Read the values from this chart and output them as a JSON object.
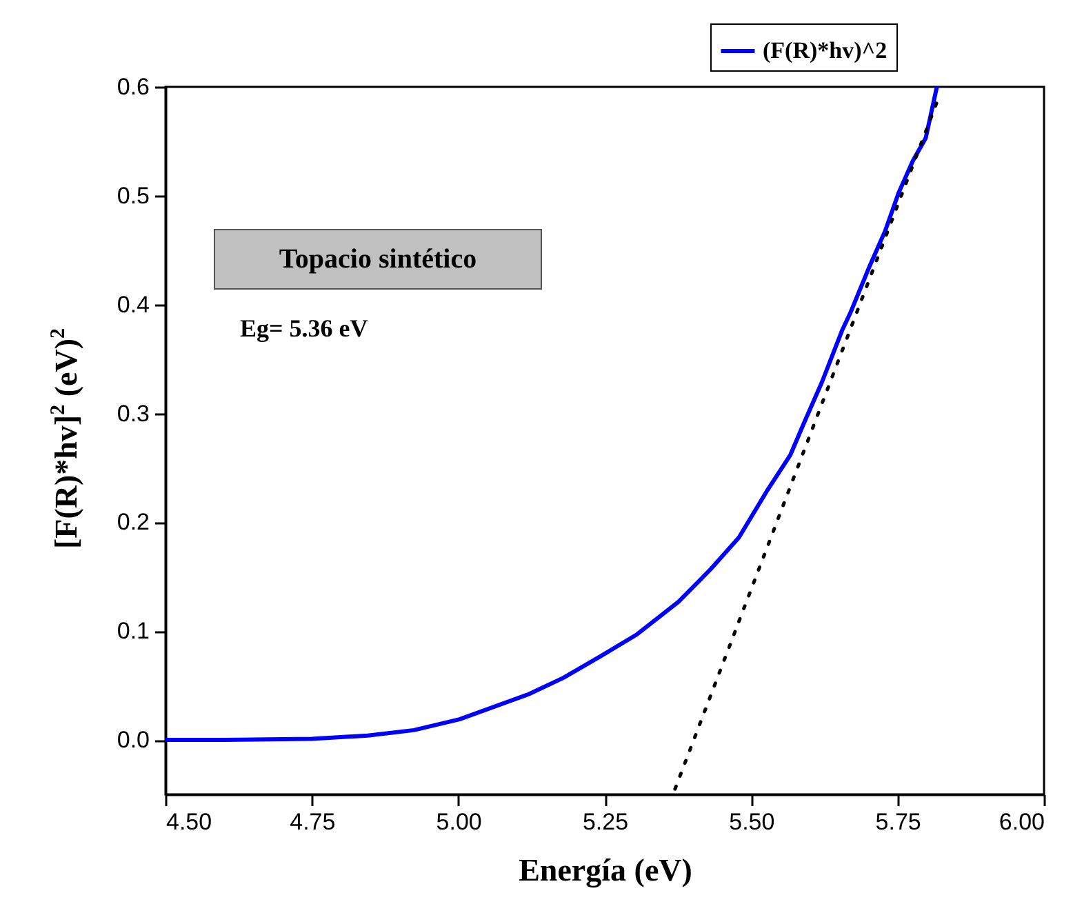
{
  "chart_data": {
    "type": "line",
    "xlabel": "Energía (eV)",
    "ylabel": "[F(R)*hv]$^{2}$ (eV)$^{2}$",
    "annotations": [
      "Topacio sintético",
      "Eg= 5.36 eV"
    ],
    "xlim": [
      4.5,
      6.0
    ],
    "ylim": [
      -0.05,
      0.6
    ],
    "xticks": [
      {
        "value": 4.5,
        "label": "4.50"
      },
      {
        "value": 4.75,
        "label": "4.75"
      },
      {
        "value": 5.0,
        "label": "5.00"
      },
      {
        "value": 5.25,
        "label": "5.25"
      },
      {
        "value": 5.5,
        "label": "5.50"
      },
      {
        "value": 5.75,
        "label": "5.75"
      },
      {
        "value": 6.0,
        "label": "6.00"
      }
    ],
    "yticks": [
      {
        "value": 0,
        "label": "0.0"
      },
      0.1,
      0.2,
      0.3,
      0.4,
      0.5,
      0.6
    ],
    "grid": false,
    "legend": "top right",
    "series": [
      {
        "name": "(F(R)*hv)^2",
        "color": "#0000ff",
        "line_style": "solid",
        "x": [
          4.5,
          4.6,
          4.75,
          4.845,
          4.924,
          5.002,
          5.12,
          5.179,
          5.24,
          5.305,
          5.376,
          5.431,
          5.479,
          5.526,
          5.567,
          5.59,
          5.621,
          5.655,
          5.669,
          5.702,
          5.729,
          5.752,
          5.776,
          5.798,
          5.817
        ],
        "values": [
          0,
          0,
          0.001,
          0.004,
          0.009,
          0.019,
          0.042,
          0.057,
          0.076,
          0.097,
          0.127,
          0.157,
          0.186,
          0.228,
          0.262,
          0.291,
          0.329,
          0.376,
          0.392,
          0.435,
          0.468,
          0.503,
          0.532,
          0.553,
          0.6
        ]
      },
      {
        "type": "line",
        "color": "#000000",
        "line_style": "dotted",
        "x": [
          5.37,
          5.82
        ],
        "values": [
          -0.045,
          0.59
        ]
      }
    ]
  }
}
